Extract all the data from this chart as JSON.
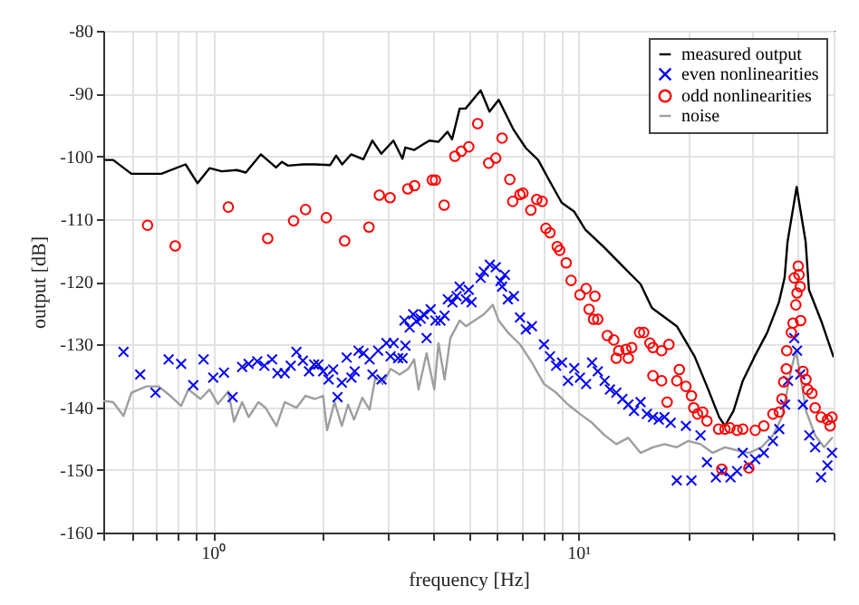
{
  "chart_data": {
    "type": "line",
    "xlabel": "frequency [Hz]",
    "ylabel": "output [dB]",
    "log": "x",
    "grid": true,
    "legend": "top right",
    "xlim": [
      0.5,
      50
    ],
    "ylim": [
      -160,
      -80
    ],
    "xticks": [
      {
        "value": 0.5,
        "label": null
      },
      {
        "value": 0.6,
        "label": null
      },
      {
        "value": 0.7,
        "label": null
      },
      {
        "value": 0.8,
        "label": null
      },
      {
        "value": 0.9,
        "label": null
      },
      {
        "value": 1,
        "label": "10⁰"
      },
      {
        "value": 2,
        "label": null
      },
      {
        "value": 3,
        "label": null
      },
      {
        "value": 4,
        "label": null
      },
      {
        "value": 5,
        "label": null
      },
      {
        "value": 6,
        "label": null
      },
      {
        "value": 7,
        "label": null
      },
      {
        "value": 8,
        "label": null
      },
      {
        "value": 9,
        "label": null
      },
      {
        "value": 10,
        "label": "10¹"
      },
      {
        "value": 20,
        "label": null
      },
      {
        "value": 30,
        "label": null
      },
      {
        "value": 40,
        "label": null
      },
      {
        "value": 50,
        "label": null
      }
    ],
    "yticks": [
      -160,
      -150,
      -140,
      -130,
      -120,
      -110,
      -100,
      -90,
      -80
    ],
    "series": [
      {
        "name": "measured output",
        "type": "line",
        "color": "#000000",
        "x": [
          0.505,
          0.532,
          0.597,
          0.721,
          0.84,
          0.906,
          0.977,
          1.055,
          1.16,
          1.228,
          1.35,
          1.486,
          1.543,
          1.602,
          1.763,
          1.899,
          2.091,
          2.171,
          2.255,
          2.385,
          2.576,
          2.727,
          2.886,
          3.115,
          3.298,
          3.358,
          3.555,
          3.76,
          3.91,
          4.14,
          4.38,
          4.51,
          4.73,
          4.91,
          5.4,
          5.71,
          6.05,
          6.65,
          7.18,
          7.76,
          8.35,
          9.0,
          9.73,
          10.45,
          11.8,
          13.2,
          14.8,
          15.9,
          18.6,
          20.8,
          22.5,
          24.3,
          25.2,
          26.6,
          28.2,
          30.4,
          32.9,
          35.4,
          36.7,
          37.4,
          39.6,
          41.9,
          42.8,
          46.2,
          49.9
        ],
        "values": [
          -100.6,
          -100.6,
          -102.8,
          -102.8,
          -101.3,
          -104.3,
          -101.9,
          -102.4,
          -102.2,
          -102.6,
          -99.7,
          -101.8,
          -100.9,
          -101.5,
          -101.3,
          -101.3,
          -101.4,
          -99.9,
          -101.3,
          -99.7,
          -100.5,
          -97.5,
          -99.6,
          -97.5,
          -100.4,
          -98.6,
          -99.0,
          -98.1,
          -97.5,
          -97.7,
          -96.1,
          -97.3,
          -92.4,
          -92.4,
          -89.5,
          -92.9,
          -91.0,
          -95.8,
          -98.7,
          -100.6,
          -104.0,
          -107.4,
          -108.8,
          -111.7,
          -114.6,
          -117.5,
          -120.4,
          -124.2,
          -127.1,
          -131.9,
          -136.7,
          -141.6,
          -143.0,
          -140.6,
          -135.8,
          -131.9,
          -128.1,
          -123.3,
          -119.4,
          -113.6,
          -104.9,
          -113.6,
          -121.3,
          -126.2,
          -131.9
        ]
      },
      {
        "name": "even nonlinearities",
        "type": "scatter",
        "marker": "cross",
        "color": "#0000ff",
        "x": [
          0.568,
          0.631,
          0.695,
          0.755,
          0.817,
          0.882,
          0.941,
          1.0,
          1.07,
          1.13,
          1.2,
          1.25,
          1.32,
          1.38,
          1.45,
          1.5,
          1.57,
          1.63,
          1.69,
          1.76,
          1.83,
          1.89,
          1.94,
          2.0,
          2.07,
          2.13,
          2.19,
          2.25,
          2.32,
          2.39,
          2.44,
          2.5,
          2.58,
          2.68,
          2.73,
          2.83,
          2.89,
          2.98,
          3.06,
          3.12,
          3.21,
          3.3,
          3.34,
          3.36,
          3.45,
          3.53,
          3.6,
          3.7,
          3.77,
          3.84,
          3.94,
          4.06,
          4.19,
          4.3,
          4.39,
          4.52,
          4.64,
          4.73,
          4.92,
          5.01,
          5.1,
          5.4,
          5.51,
          5.72,
          5.94,
          6.12,
          6.18,
          6.29,
          6.41,
          6.66,
          6.92,
          7.18,
          7.46,
          8.05,
          8.36,
          8.69,
          9.02,
          9.37,
          9.74,
          10.1,
          10.5,
          10.9,
          11.3,
          11.8,
          12.2,
          12.7,
          13.2,
          13.7,
          14.2,
          14.8,
          15.4,
          16.0,
          16.6,
          17.2,
          17.9,
          18.6,
          19.7,
          20.4,
          21.6,
          22.5,
          23.8,
          24.7,
          26.1,
          27.2,
          28.2,
          29.3,
          30.5,
          32.2,
          34.1,
          35.5,
          36.8,
          37.5,
          39.0,
          39.7,
          40.5,
          41.2,
          42.9,
          44.5,
          46.2,
          48.1,
          49.5
        ],
        "values": [
          -131.2,
          -134.8,
          -137.7,
          -132.4,
          -133.1,
          -136.5,
          -132.4,
          -135.3,
          -134.5,
          -138.4,
          -133.6,
          -133.1,
          -132.7,
          -133.4,
          -132.4,
          -134.6,
          -134.6,
          -133.4,
          -131.2,
          -132.6,
          -134.3,
          -133.2,
          -133.2,
          -134.3,
          -135.6,
          -134.0,
          -138.4,
          -136.1,
          -132.1,
          -135.3,
          -134.3,
          -131.0,
          -131.4,
          -132.4,
          -134.8,
          -131.0,
          -135.6,
          -129.8,
          -131.9,
          -129.8,
          -132.2,
          -132.2,
          -126.2,
          -130.2,
          -127.3,
          -125.2,
          -126.3,
          -125.9,
          -125.2,
          -129.0,
          -124.4,
          -126.2,
          -126.2,
          -125.4,
          -122.8,
          -123.3,
          -122.3,
          -120.8,
          -122.8,
          -121.3,
          -123.3,
          -119.4,
          -118.4,
          -117.3,
          -117.7,
          -119.9,
          -120.8,
          -118.9,
          -122.8,
          -122.3,
          -125.7,
          -127.6,
          -127.1,
          -130.0,
          -131.9,
          -133.4,
          -132.9,
          -135.8,
          -133.8,
          -135.3,
          -136.3,
          -132.9,
          -134.3,
          -135.8,
          -137.2,
          -137.7,
          -138.7,
          -139.6,
          -140.6,
          -139.2,
          -141.1,
          -141.6,
          -142.0,
          -141.6,
          -142.5,
          -151.7,
          -143.0,
          -151.7,
          -144.5,
          -148.8,
          -151.2,
          -150.2,
          -151.2,
          -150.2,
          -147.3,
          -149.3,
          -148.3,
          -147.3,
          -145.4,
          -143.5,
          -139.6,
          -135.8,
          -129.0,
          -131.0,
          -134.8,
          -139.6,
          -144.5,
          -146.4,
          -151.2,
          -149.3,
          -147.3
        ]
      },
      {
        "name": "odd nonlinearities",
        "type": "scatter",
        "marker": "circle",
        "color": "#ff0000",
        "x": [
          0.661,
          0.787,
          1.1,
          1.41,
          1.66,
          1.79,
          2.04,
          2.29,
          2.67,
          2.85,
          3.05,
          3.41,
          3.56,
          3.98,
          4.06,
          4.29,
          4.59,
          4.78,
          5.01,
          5.3,
          5.68,
          5.94,
          6.18,
          6.49,
          6.61,
          6.92,
          7.05,
          7.41,
          7.69,
          7.96,
          8.15,
          8.36,
          8.75,
          8.89,
          9.26,
          9.55,
          10.1,
          10.5,
          10.7,
          11.0,
          11.1,
          11.3,
          12.0,
          12.5,
          12.7,
          12.9,
          13.5,
          13.7,
          14.0,
          14.7,
          15.1,
          15.7,
          16.0,
          16.0,
          16.9,
          16.9,
          17.5,
          17.7,
          18.6,
          18.9,
          19.7,
          20.4,
          20.7,
          21.2,
          21.9,
          22.5,
          24.2,
          24.7,
          25.2,
          26.0,
          27.2,
          28.2,
          29.3,
          30.5,
          32.2,
          34.1,
          35.5,
          36.1,
          36.5,
          37.1,
          37.2,
          38.3,
          38.7,
          39.0,
          39.4,
          39.7,
          40.0,
          40.2,
          40.5,
          40.6,
          41.2,
          42.0,
          42.5,
          43.6,
          44.5,
          46.2,
          48.1,
          48.9,
          49.5
        ],
        "values": [
          -111.0,
          -114.3,
          -108.1,
          -113.1,
          -110.3,
          -108.5,
          -109.8,
          -113.5,
          -111.3,
          -106.2,
          -106.6,
          -105.2,
          -104.7,
          -103.8,
          -103.8,
          -107.8,
          -100.0,
          -99.2,
          -98.5,
          -94.8,
          -101.1,
          -100.3,
          -97.1,
          -103.7,
          -107.2,
          -106.1,
          -105.9,
          -108.6,
          -106.9,
          -107.2,
          -111.5,
          -112.2,
          -114.4,
          -115.0,
          -117.0,
          -119.8,
          -122.1,
          -121.1,
          -124.4,
          -126.0,
          -122.3,
          -126.0,
          -128.6,
          -129.3,
          -132.2,
          -131.0,
          -130.8,
          -132.2,
          -130.5,
          -128.1,
          -128.1,
          -129.8,
          -130.5,
          -135.0,
          -131.0,
          -135.8,
          -139.2,
          -130.0,
          -135.8,
          -134.0,
          -136.7,
          -138.2,
          -140.1,
          -141.1,
          -140.8,
          -142.2,
          -143.5,
          -149.9,
          -143.5,
          -143.3,
          -143.7,
          -143.5,
          -149.7,
          -143.7,
          -143.0,
          -141.1,
          -140.8,
          -138.7,
          -136.0,
          -133.9,
          -131.0,
          -128.1,
          -126.6,
          -119.4,
          -123.7,
          -121.8,
          -117.5,
          -118.9,
          -120.8,
          -126.2,
          -134.3,
          -135.6,
          -137.2,
          -137.8,
          -140.1,
          -141.6,
          -142.0,
          -143.0,
          -141.6
        ]
      },
      {
        "name": "noise",
        "type": "line",
        "color": "#9e9e9e",
        "x": [
          0.5,
          0.532,
          0.568,
          0.597,
          0.656,
          0.708,
          0.763,
          0.817,
          0.855,
          0.923,
          0.977,
          1.03,
          1.1,
          1.14,
          1.2,
          1.25,
          1.33,
          1.39,
          1.49,
          1.57,
          1.69,
          1.79,
          1.9,
          2.0,
          2.05,
          2.15,
          2.25,
          2.34,
          2.43,
          2.56,
          2.68,
          2.78,
          2.91,
          3.06,
          3.24,
          3.42,
          3.55,
          3.65,
          3.84,
          4.03,
          4.14,
          4.3,
          4.46,
          4.73,
          4.92,
          5.51,
          5.83,
          6.05,
          6.41,
          6.92,
          7.46,
          8.05,
          8.69,
          9.37,
          10.1,
          10.9,
          11.8,
          12.7,
          13.7,
          14.8,
          16.0,
          17.2,
          18.6,
          20.0,
          21.6,
          23.3,
          25.2,
          27.2,
          29.3,
          31.7,
          34.1,
          36.1,
          38.3,
          39.4,
          40.5,
          42.0,
          44.5,
          47.1,
          49.5
        ],
        "values": [
          -139.0,
          -139.2,
          -141.4,
          -137.7,
          -136.7,
          -136.7,
          -138.2,
          -139.8,
          -137.2,
          -138.7,
          -137.2,
          -139.5,
          -137.5,
          -142.3,
          -139.2,
          -141.6,
          -139.2,
          -140.1,
          -143.0,
          -139.2,
          -140.1,
          -138.2,
          -138.7,
          -138.2,
          -143.7,
          -139.2,
          -143.0,
          -139.6,
          -142.0,
          -138.5,
          -140.4,
          -135.3,
          -136.3,
          -133.9,
          -134.8,
          -133.9,
          -132.4,
          -137.2,
          -131.4,
          -137.2,
          -129.8,
          -135.6,
          -129.0,
          -126.2,
          -127.1,
          -125.2,
          -123.7,
          -126.2,
          -128.1,
          -130.0,
          -132.9,
          -136.3,
          -137.7,
          -139.6,
          -141.1,
          -142.5,
          -144.5,
          -145.9,
          -144.9,
          -147.3,
          -146.4,
          -145.9,
          -146.4,
          -145.4,
          -145.9,
          -147.3,
          -146.4,
          -146.9,
          -147.3,
          -146.4,
          -144.5,
          -141.6,
          -133.9,
          -131.0,
          -134.8,
          -140.6,
          -144.5,
          -146.4,
          -144.9
        ]
      }
    ]
  }
}
